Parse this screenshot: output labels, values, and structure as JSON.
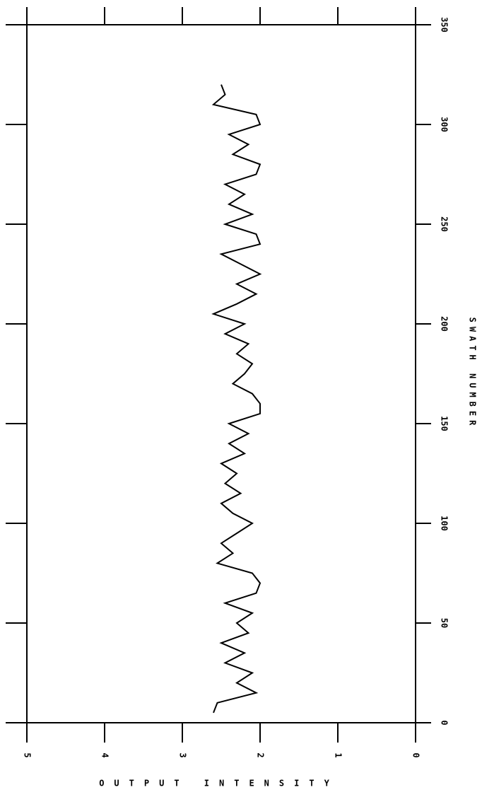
{
  "chart_data": {
    "type": "line",
    "x_label": "SWATH NUMBER",
    "y_label": "OUTPUT INTENSITY",
    "x": [
      5,
      10,
      15,
      20,
      25,
      30,
      35,
      40,
      45,
      50,
      55,
      60,
      65,
      70,
      75,
      80,
      85,
      90,
      95,
      100,
      105,
      110,
      115,
      120,
      125,
      130,
      135,
      140,
      145,
      150,
      155,
      160,
      165,
      170,
      175,
      180,
      185,
      190,
      195,
      200,
      205,
      210,
      215,
      220,
      225,
      230,
      235,
      240,
      245,
      250,
      255,
      260,
      265,
      270,
      275,
      280,
      285,
      290,
      295,
      300,
      305,
      310,
      315,
      320
    ],
    "series": [
      {
        "name": "OUTPUT INTENSITY",
        "color": "#000000",
        "values": [
          2.6,
          2.55,
          2.05,
          2.3,
          2.1,
          2.45,
          2.2,
          2.5,
          2.15,
          2.3,
          2.1,
          2.45,
          2.05,
          2.0,
          2.1,
          2.55,
          2.35,
          2.5,
          2.3,
          2.1,
          2.35,
          2.5,
          2.25,
          2.45,
          2.3,
          2.5,
          2.2,
          2.4,
          2.15,
          2.4,
          2.0,
          2.0,
          2.1,
          2.35,
          2.2,
          2.1,
          2.3,
          2.15,
          2.45,
          2.2,
          2.6,
          2.3,
          2.05,
          2.3,
          2.0,
          2.25,
          2.5,
          2.0,
          2.05,
          2.45,
          2.1,
          2.4,
          2.2,
          2.45,
          2.05,
          2.0,
          2.35,
          2.15,
          2.4,
          2.0,
          2.05,
          2.6,
          2.45,
          2.5
        ]
      }
    ],
    "xlim": [
      0,
      350
    ],
    "xticks": [
      0,
      50,
      100,
      150,
      200,
      250,
      300,
      350
    ],
    "ylim": [
      0,
      5
    ],
    "yticks": [
      0,
      1,
      2,
      3,
      4,
      5
    ]
  }
}
